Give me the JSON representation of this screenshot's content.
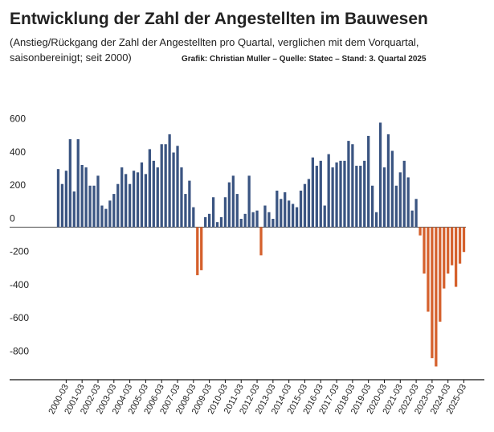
{
  "chart_data": {
    "type": "bar",
    "title": "Entwicklung der Zahl der Angestellten im Bauwesen",
    "subtitle": "(Anstieg/Rückgang der Zahl der Angestellten pro Quartal, verglichen mit dem Vorquartal,",
    "subtitle2": "saisonbereinigt; seit 2000)",
    "source": "Grafik: Christian Muller – Quelle: Statec  – Stand: 3. Quartal 2025",
    "categories": [
      null,
      null,
      "2000-03",
      null,
      null,
      null,
      "2001-03",
      null,
      null,
      null,
      "2002-03",
      null,
      null,
      null,
      "2003-03",
      null,
      null,
      null,
      "2004-03",
      null,
      null,
      null,
      "2005-03",
      null,
      null,
      null,
      "2006-03",
      null,
      null,
      null,
      "2007-03",
      null,
      null,
      null,
      "2008-03",
      null,
      null,
      null,
      "2009-03",
      null,
      null,
      null,
      "2010-03",
      null,
      null,
      null,
      "2011-03",
      null,
      null,
      null,
      "2012-03",
      null,
      null,
      null,
      "2013-03",
      null,
      null,
      null,
      "2014-03",
      null,
      null,
      null,
      "2015-03",
      null,
      null,
      null,
      "2016-03",
      null,
      null,
      null,
      "2017-03",
      null,
      null,
      null,
      "2018-03",
      null,
      null,
      null,
      "2019-03",
      null,
      null,
      null,
      "2020-03",
      null,
      null,
      null,
      "2021-03",
      null,
      null,
      null,
      "2022-03",
      null,
      null,
      null,
      "2023-03",
      null,
      null,
      null,
      "2024-03",
      null,
      null,
      null,
      "2025-03"
    ],
    "values": [
      350,
      260,
      340,
      530,
      215,
      530,
      375,
      360,
      250,
      250,
      310,
      130,
      110,
      160,
      200,
      260,
      360,
      320,
      260,
      340,
      330,
      390,
      320,
      470,
      400,
      360,
      500,
      500,
      560,
      450,
      490,
      360,
      200,
      280,
      120,
      -290,
      -260,
      60,
      80,
      180,
      30,
      60,
      180,
      270,
      310,
      200,
      50,
      80,
      310,
      90,
      100,
      -170,
      130,
      90,
      50,
      220,
      170,
      210,
      160,
      140,
      120,
      220,
      260,
      290,
      420,
      370,
      400,
      130,
      440,
      360,
      390,
      400,
      400,
      520,
      500,
      370,
      370,
      400,
      550,
      250,
      90,
      630,
      360,
      560,
      460,
      250,
      330,
      400,
      300,
      100,
      170,
      -50,
      -280,
      -510,
      -790,
      -840,
      -570,
      -370,
      -280,
      -230,
      -360,
      -220,
      -150
    ],
    "positive_color": "#3b5582",
    "negative_color": "#d5602c",
    "ylim": [
      -920,
      700
    ],
    "yticks": [
      600,
      400,
      200,
      0,
      -200,
      -400,
      -600,
      -800
    ],
    "grid": false
  }
}
